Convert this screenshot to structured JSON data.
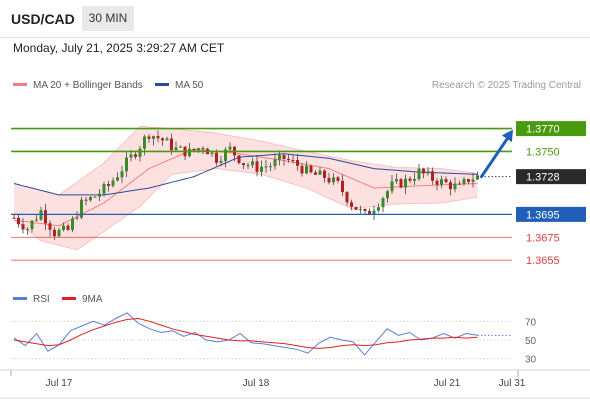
{
  "header": {
    "symbol": "USD/CAD",
    "interval": "30 MIN"
  },
  "datetime": "Monday, July 21, 2025 3:29:27 AM CET",
  "legend": {
    "bollinger_label": "MA 20 + Bollinger Bands",
    "bollinger_color": "#f08080",
    "ma50_label": "MA 50",
    "ma50_color": "#2a4a9a"
  },
  "credit": "Research © 2025 Trading Central",
  "rsi_legend": {
    "rsi_label": "RSI",
    "rsi_color": "#5b7fd4",
    "ma_label": "9MA",
    "ma_color": "#e02020"
  },
  "chart_data": [
    {
      "type": "candlestick",
      "title": "USD/CAD 30 MIN",
      "ylim": [
        1.3635,
        1.3795
      ],
      "x_tick_labels": [
        "Jul 17",
        "Jul 18",
        "Jul 21",
        "Jul 31"
      ],
      "current_price": "1.3728",
      "resistance_levels": [
        {
          "label": "1.3770",
          "value": 1.377,
          "color": "#4a9a10",
          "filled": true
        },
        {
          "label": "1.3750",
          "value": 1.375,
          "color": "#4a9a10",
          "filled": false
        }
      ],
      "support_levels": [
        {
          "label": "1.3695",
          "value": 1.3695,
          "color": "#1f5fb8",
          "filled": true
        },
        {
          "label": "1.3675",
          "value": 1.3675,
          "color": "#e04040",
          "filled": false
        },
        {
          "label": "1.3655",
          "value": 1.3655,
          "color": "#e04040",
          "filled": false
        }
      ],
      "forecast_arrow": {
        "from": 1.3728,
        "to": 1.377,
        "color": "#1f5fb8"
      },
      "close_path": [
        [
          0,
          1.3692
        ],
        [
          3,
          1.3683
        ],
        [
          6,
          1.3698
        ],
        [
          9,
          1.3679
        ],
        [
          12,
          1.3681
        ],
        [
          15,
          1.3704
        ],
        [
          18,
          1.3711
        ],
        [
          21,
          1.372
        ],
        [
          24,
          1.3735
        ],
        [
          27,
          1.375
        ],
        [
          30,
          1.3766
        ],
        [
          33,
          1.376
        ],
        [
          36,
          1.3752
        ],
        [
          39,
          1.3749
        ],
        [
          42,
          1.3755
        ],
        [
          45,
          1.3744
        ],
        [
          48,
          1.3752
        ],
        [
          51,
          1.374
        ],
        [
          54,
          1.3736
        ],
        [
          57,
          1.3738
        ],
        [
          60,
          1.3744
        ],
        [
          63,
          1.3738
        ],
        [
          66,
          1.373
        ],
        [
          69,
          1.3728
        ],
        [
          72,
          1.3721
        ],
        [
          75,
          1.3704
        ],
        [
          78,
          1.3694
        ],
        [
          81,
          1.3706
        ],
        [
          84,
          1.372
        ],
        [
          87,
          1.3724
        ],
        [
          90,
          1.3732
        ],
        [
          93,
          1.3726
        ],
        [
          96,
          1.3722
        ],
        [
          99,
          1.3718
        ],
        [
          101,
          1.3726
        ],
        [
          103,
          1.3728
        ]
      ],
      "bollinger_middle": [
        [
          0,
          1.369
        ],
        [
          10,
          1.3685
        ],
        [
          20,
          1.3705
        ],
        [
          30,
          1.3735
        ],
        [
          40,
          1.3752
        ],
        [
          50,
          1.3748
        ],
        [
          60,
          1.3742
        ],
        [
          70,
          1.3735
        ],
        [
          80,
          1.3718
        ],
        [
          90,
          1.372
        ],
        [
          103,
          1.3722
        ]
      ],
      "bollinger_upper": [
        [
          0,
          1.3722
        ],
        [
          10,
          1.3712
        ],
        [
          20,
          1.374
        ],
        [
          28,
          1.3772
        ],
        [
          35,
          1.377
        ],
        [
          45,
          1.3766
        ],
        [
          55,
          1.3759
        ],
        [
          65,
          1.375
        ],
        [
          75,
          1.3742
        ],
        [
          85,
          1.3736
        ],
        [
          95,
          1.3735
        ],
        [
          103,
          1.3731
        ]
      ],
      "bollinger_lower": [
        [
          0,
          1.369
        ],
        [
          6,
          1.3672
        ],
        [
          14,
          1.3664
        ],
        [
          20,
          1.368
        ],
        [
          28,
          1.3702
        ],
        [
          35,
          1.373
        ],
        [
          45,
          1.3735
        ],
        [
          55,
          1.373
        ],
        [
          65,
          1.3718
        ],
        [
          75,
          1.37
        ],
        [
          85,
          1.3704
        ],
        [
          95,
          1.3705
        ],
        [
          103,
          1.371
        ]
      ],
      "ma50": [
        [
          0,
          1.3722
        ],
        [
          10,
          1.3712
        ],
        [
          20,
          1.3712
        ],
        [
          30,
          1.3718
        ],
        [
          40,
          1.3728
        ],
        [
          50,
          1.3745
        ],
        [
          60,
          1.3748
        ],
        [
          70,
          1.3744
        ],
        [
          80,
          1.3735
        ],
        [
          90,
          1.3732
        ],
        [
          103,
          1.373
        ]
      ]
    },
    {
      "type": "line",
      "title": "RSI",
      "ylim": [
        20,
        80
      ],
      "y_ticks": [
        "70",
        "50",
        "30"
      ],
      "series": [
        {
          "name": "RSI",
          "values": [
            52,
            44,
            57,
            38,
            45,
            60,
            65,
            70,
            66,
            73,
            79,
            68,
            62,
            58,
            60,
            54,
            58,
            50,
            48,
            50,
            57,
            47,
            46,
            44,
            42,
            40,
            36,
            47,
            53,
            50,
            48,
            34,
            48,
            62,
            55,
            58,
            50,
            52,
            57,
            52,
            57,
            55
          ]
        },
        {
          "name": "9MA",
          "values": [
            50,
            48,
            46,
            44,
            45,
            50,
            56,
            61,
            65,
            69,
            72,
            73,
            70,
            66,
            62,
            59,
            56,
            54,
            52,
            50,
            49,
            49,
            48,
            47,
            46,
            44,
            42,
            41,
            42,
            44,
            45,
            44,
            45,
            47,
            48,
            50,
            51,
            52,
            52,
            53,
            52,
            53
          ]
        }
      ]
    }
  ]
}
